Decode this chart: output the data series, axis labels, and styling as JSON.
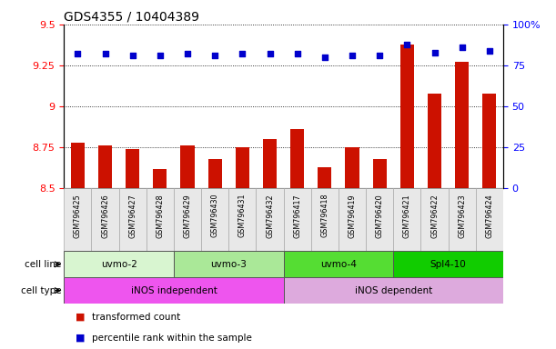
{
  "title": "GDS4355 / 10404389",
  "samples": [
    "GSM796425",
    "GSM796426",
    "GSM796427",
    "GSM796428",
    "GSM796429",
    "GSM796430",
    "GSM796431",
    "GSM796432",
    "GSM796417",
    "GSM796418",
    "GSM796419",
    "GSM796420",
    "GSM796421",
    "GSM796422",
    "GSM796423",
    "GSM796424"
  ],
  "transformed_count": [
    8.78,
    8.76,
    8.74,
    8.62,
    8.76,
    8.68,
    8.75,
    8.8,
    8.86,
    8.63,
    8.75,
    8.68,
    9.38,
    9.08,
    9.27,
    9.08
  ],
  "percentile_rank": [
    82,
    82,
    81,
    81,
    82,
    81,
    82,
    82,
    82,
    80,
    81,
    81,
    88,
    83,
    86,
    84
  ],
  "ylim_left": [
    8.5,
    9.5
  ],
  "ylim_right": [
    0,
    100
  ],
  "yticks_left": [
    8.5,
    8.75,
    9.0,
    9.25,
    9.5
  ],
  "yticks_right": [
    0,
    25,
    50,
    75,
    100
  ],
  "bar_color": "#cc1100",
  "dot_color": "#0000cc",
  "cell_line_groups": [
    {
      "label": "uvmo-2",
      "start": 0,
      "end": 3,
      "color": "#d8f5d0"
    },
    {
      "label": "uvmo-3",
      "start": 4,
      "end": 7,
      "color": "#aae898"
    },
    {
      "label": "uvmo-4",
      "start": 8,
      "end": 11,
      "color": "#55dd33"
    },
    {
      "label": "Spl4-10",
      "start": 12,
      "end": 15,
      "color": "#11cc00"
    }
  ],
  "cell_type_groups": [
    {
      "label": "iNOS independent",
      "start": 0,
      "end": 7,
      "color": "#ee55ee"
    },
    {
      "label": "iNOS dependent",
      "start": 8,
      "end": 15,
      "color": "#ddaadd"
    }
  ],
  "legend_items": [
    {
      "color": "#cc1100",
      "label": "transformed count"
    },
    {
      "color": "#0000cc",
      "label": "percentile rank within the sample"
    }
  ],
  "background_color": "#ffffff",
  "title_fontsize": 10,
  "tick_fontsize": 8
}
